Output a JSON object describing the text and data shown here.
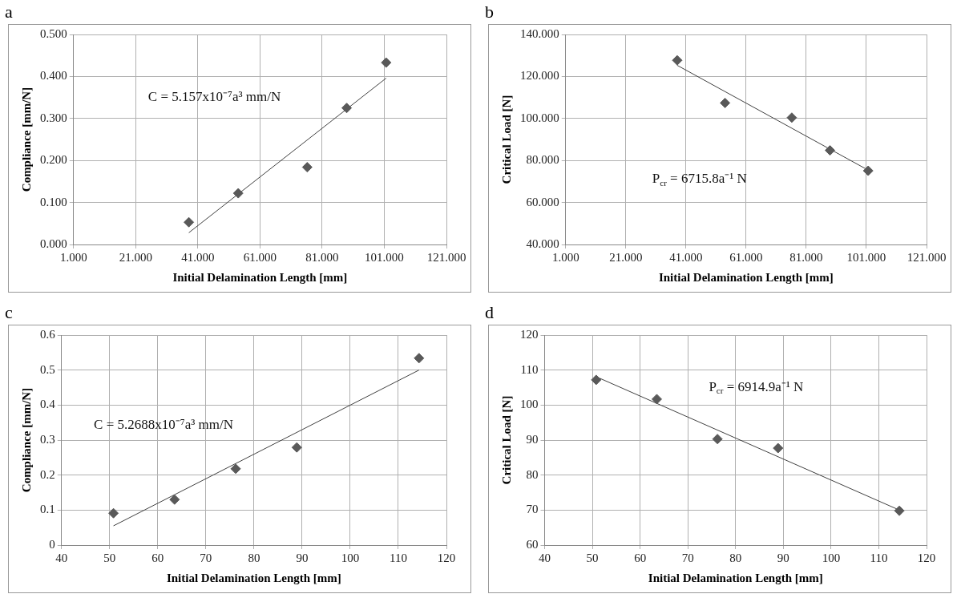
{
  "chart_data": [
    {
      "type": "scatter",
      "title": "a",
      "xlabel": "Initial Delamination Length [mm]",
      "ylabel": "Compliance [mm/N]",
      "xlim": [
        1,
        121
      ],
      "xticks": [
        {
          "value": 1,
          "label": "1.000"
        },
        {
          "value": 21,
          "label": "21.000"
        },
        {
          "value": 41,
          "label": "41.000"
        },
        {
          "value": 61,
          "label": "61.000"
        },
        {
          "value": 81,
          "label": "81.000"
        },
        {
          "value": 101,
          "label": "101.000"
        },
        {
          "value": 121,
          "label": "121.000"
        }
      ],
      "ylim": [
        0,
        0.5
      ],
      "yticks": [
        {
          "value": 0,
          "label": "0.000"
        },
        {
          "value": 0.1,
          "label": "0.100"
        },
        {
          "value": 0.2,
          "label": "0.200"
        },
        {
          "value": 0.3,
          "label": "0.300"
        },
        {
          "value": 0.4,
          "label": "0.400"
        },
        {
          "value": 0.5,
          "label": "0.500"
        }
      ],
      "grid": true,
      "legend": false,
      "series": [
        {
          "type": "scatter",
          "marker": "diamond",
          "color": "#595959",
          "x": [
            38.1,
            54,
            76.2,
            88.9,
            101.6
          ],
          "values": [
            0.053,
            0.122,
            0.184,
            0.325,
            0.433
          ]
        },
        {
          "type": "line",
          "marker": "none",
          "color": "#404040",
          "x": [
            38.1,
            101.6
          ],
          "values": [
            0.028,
            0.396
          ]
        }
      ],
      "annotations": [
        "C = 5.157x10⁻⁷a³ mm/N"
      ]
    },
    {
      "type": "scatter",
      "title": "b",
      "xlabel": "Initial Delamination Length [mm]",
      "ylabel": "Critical Load [N]",
      "xlim": [
        1,
        121
      ],
      "xticks": [
        {
          "value": 1,
          "label": "1.000"
        },
        {
          "value": 21,
          "label": "21.000"
        },
        {
          "value": 41,
          "label": "41.000"
        },
        {
          "value": 61,
          "label": "61.000"
        },
        {
          "value": 81,
          "label": "81.000"
        },
        {
          "value": 101,
          "label": "101.000"
        },
        {
          "value": 121,
          "label": "121.000"
        }
      ],
      "ylim": [
        40,
        140
      ],
      "yticks": [
        {
          "value": 40,
          "label": "40.000"
        },
        {
          "value": 60,
          "label": "60.000"
        },
        {
          "value": 80,
          "label": "80.000"
        },
        {
          "value": 100,
          "label": "100.000"
        },
        {
          "value": 120,
          "label": "120.000"
        },
        {
          "value": 140,
          "label": "140.000"
        }
      ],
      "grid": true,
      "legend": false,
      "series": [
        {
          "type": "scatter",
          "marker": "diamond",
          "color": "#595959",
          "x": [
            38.1,
            54,
            76.2,
            88.9,
            101.6
          ],
          "values": [
            127.7,
            107.4,
            100.4,
            84.8,
            75.1
          ]
        },
        {
          "type": "line",
          "marker": "none",
          "color": "#404040",
          "x": [
            38.1,
            101.6
          ],
          "values": [
            125.3,
            75.4
          ]
        }
      ],
      "annotations": [
        "P$_{cr}$ = 6715.8a⁻¹ N"
      ]
    },
    {
      "type": "scatter",
      "title": "c",
      "xlabel": "Initial Delamination Length [mm]",
      "ylabel": "Compliance [mm/N]",
      "xlim": [
        40,
        120
      ],
      "xticks": [
        40,
        50,
        60,
        70,
        80,
        90,
        100,
        110,
        120
      ],
      "ylim": [
        0,
        0.6
      ],
      "yticks": [
        0,
        0.1,
        0.2,
        0.3,
        0.4,
        0.5,
        0.6
      ],
      "grid": true,
      "legend": false,
      "series": [
        {
          "type": "scatter",
          "marker": "diamond",
          "color": "#595959",
          "x": [
            50.8,
            63.5,
            76.2,
            88.9,
            114.3
          ],
          "values": [
            0.091,
            0.13,
            0.218,
            0.279,
            0.534
          ]
        },
        {
          "type": "line",
          "marker": "none",
          "color": "#404040",
          "x": [
            50.8,
            114.3
          ],
          "values": [
            0.055,
            0.5
          ]
        }
      ],
      "annotations": [
        "C = 5.2688x10⁻⁷a³ mm/N"
      ]
    },
    {
      "type": "scatter",
      "title": "d",
      "xlabel": "Initial Delamination Length [mm]",
      "ylabel": "Critical Load [N]",
      "xlim": [
        40,
        120
      ],
      "xticks": [
        40,
        50,
        60,
        70,
        80,
        90,
        100,
        110,
        120
      ],
      "ylim": [
        60,
        120
      ],
      "yticks": [
        60,
        70,
        80,
        90,
        100,
        110,
        120
      ],
      "grid": true,
      "legend": false,
      "series": [
        {
          "type": "scatter",
          "marker": "diamond",
          "color": "#595959",
          "x": [
            50.8,
            63.5,
            76.2,
            88.9,
            114.3
          ],
          "values": [
            107.2,
            101.7,
            90.3,
            87.7,
            69.8
          ]
        },
        {
          "type": "line",
          "marker": "none",
          "color": "#404040",
          "x": [
            50.8,
            114.3
          ],
          "values": [
            108.1,
            70
          ]
        }
      ],
      "annotations": [
        "P$_{cr}$ = 6914.9a⁻¹ N"
      ]
    }
  ]
}
